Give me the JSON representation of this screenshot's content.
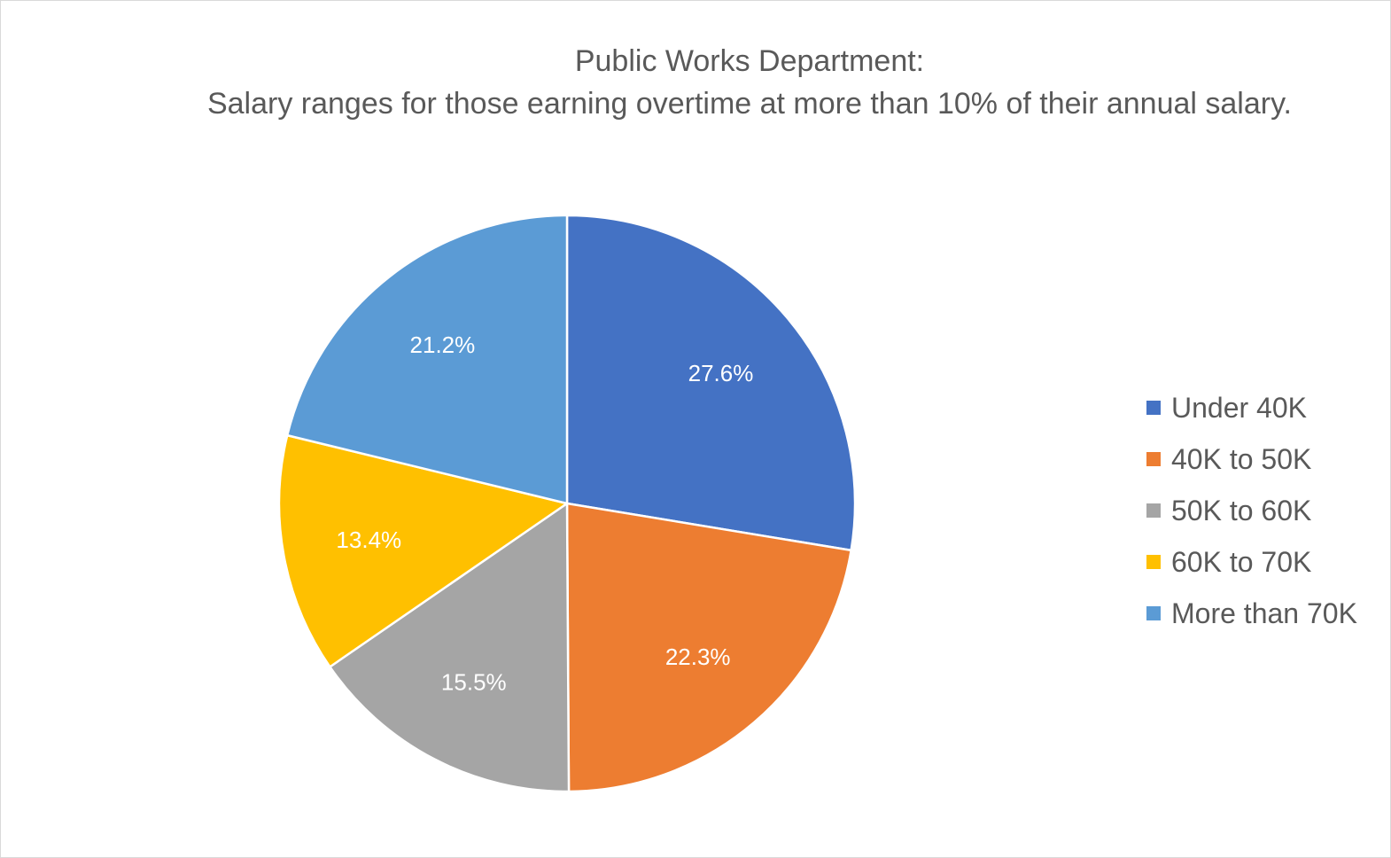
{
  "chart_data": {
    "type": "pie",
    "title": "Public Works Department:",
    "subtitle": "Salary ranges for those earning overtime at more than 10% of their annual salary.",
    "legend_position": "right",
    "slices": [
      {
        "name": "Under 40K",
        "value": 27.6,
        "label": "27.6%",
        "color": "#4472C4"
      },
      {
        "name": "40K to 50K",
        "value": 22.3,
        "label": "22.3%",
        "color": "#ED7D31"
      },
      {
        "name": "50K to 60K",
        "value": 15.5,
        "label": "15.5%",
        "color": "#A5A5A5"
      },
      {
        "name": "60K to 70K",
        "value": 13.4,
        "label": "13.4%",
        "color": "#FFC000"
      },
      {
        "name": "More than 70K",
        "value": 21.2,
        "label": "21.2%",
        "color": "#5B9BD5"
      }
    ]
  }
}
